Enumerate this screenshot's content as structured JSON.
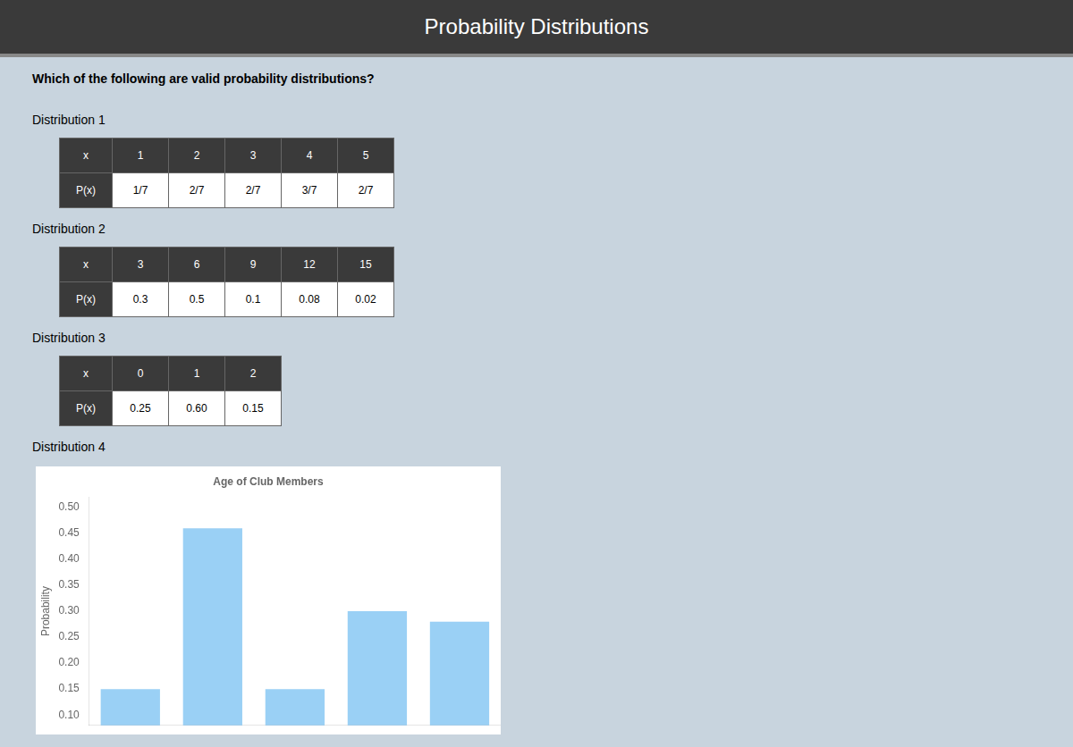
{
  "title": "Probability Distributions",
  "question": "Which of the following are valid probability distributions?",
  "tables": [
    {
      "label": "Distribution 1",
      "rows": [
        [
          "x",
          "1",
          "2",
          "3",
          "4",
          "5"
        ],
        [
          "P(x)",
          "1/7",
          "2/7",
          "2/7",
          "3/7",
          "2/7"
        ]
      ]
    },
    {
      "label": "Distribution 2",
      "rows": [
        [
          "x",
          "3",
          "6",
          "9",
          "12",
          "15"
        ],
        [
          "P(x)",
          "0.3",
          "0.5",
          "0.1",
          "0.08",
          "0.02"
        ]
      ]
    },
    {
      "label": "Distribution 3",
      "rows": [
        [
          "x",
          "0",
          "1",
          "2"
        ],
        [
          "P(x)",
          "0.25",
          "0.60",
          "0.15"
        ]
      ]
    }
  ],
  "chart_data": {
    "type": "bar",
    "label": "Distribution 4",
    "title": "Age of Club Members",
    "y_label": "Probability",
    "categories": [
      null,
      null,
      null,
      null,
      null
    ],
    "values": [
      0.15,
      0.46,
      0.15,
      0.3,
      0.28
    ],
    "ylim": [
      0.08,
      0.52
    ],
    "yticks": [
      {
        "value": 0.1,
        "label": "0.10"
      },
      {
        "value": 0.15,
        "label": "0.15"
      },
      {
        "value": 0.2,
        "label": "0.20"
      },
      {
        "value": 0.25,
        "label": "0.25"
      },
      {
        "value": 0.3,
        "label": "0.30"
      },
      {
        "value": 0.35,
        "label": "0.35"
      },
      {
        "value": 0.4,
        "label": "0.40"
      },
      {
        "value": 0.45,
        "label": "0.45"
      },
      {
        "value": 0.5,
        "label": "0.50"
      }
    ],
    "grid": false,
    "tick_labels": "y"
  }
}
